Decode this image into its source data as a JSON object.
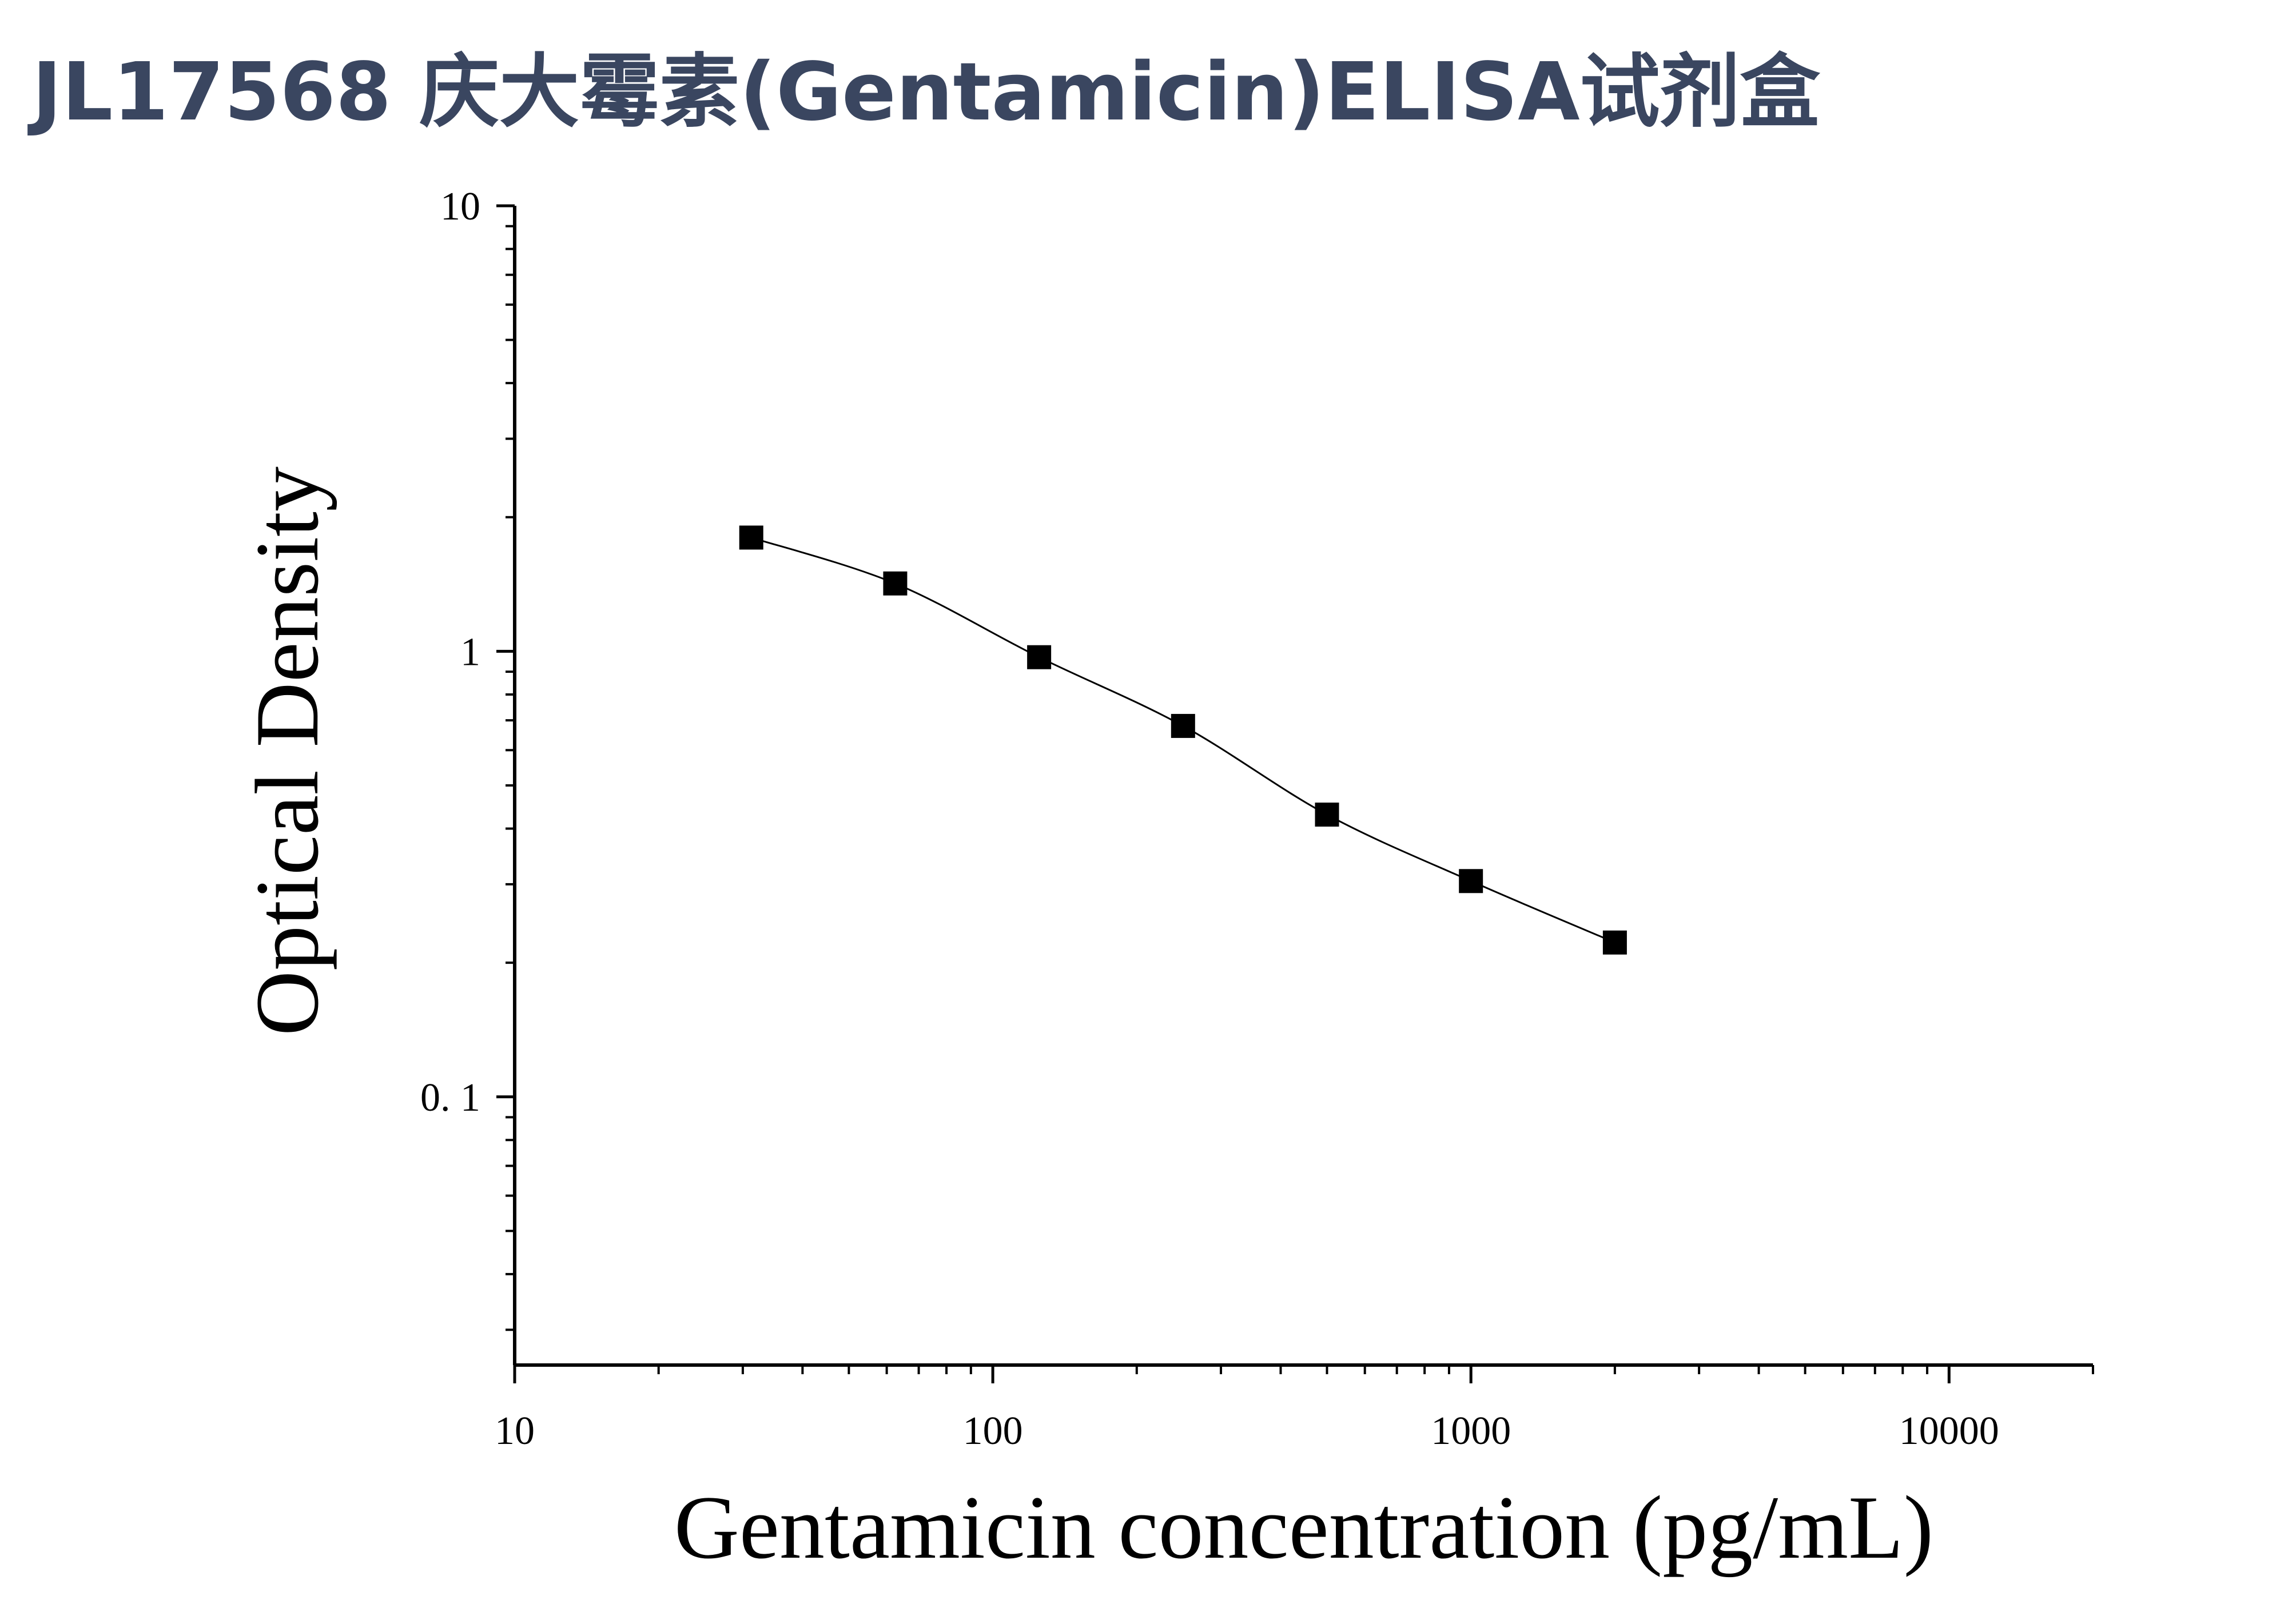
{
  "title": "JL17568 庆大霉素(Gentamicin)ELISA试剂盒",
  "chart_data": {
    "type": "scatter",
    "xlabel": "Gentamicin concentration (pg/mL)",
    "ylabel": "Optical Density",
    "xscale": "log",
    "yscale": "log",
    "xlim": [
      10,
      20000
    ],
    "ylim": [
      0.025,
      10
    ],
    "xticks": [
      {
        "value": 10,
        "label": "10"
      },
      {
        "value": 100,
        "label": "100"
      },
      {
        "value": 1000,
        "label": "1000"
      },
      {
        "value": 10000,
        "label": "10000"
      }
    ],
    "yticks": [
      {
        "value": 0.1,
        "label": "0. 1"
      },
      {
        "value": 1,
        "label": "1"
      },
      {
        "value": 10,
        "label": "10"
      }
    ],
    "grid": false,
    "marker": "square",
    "fit_line": "smooth curve through points",
    "colors": {
      "marker": "#000000",
      "line": "#000000",
      "title": "#3a4660"
    },
    "series": [
      {
        "x": [
          31.25,
          62.5,
          125,
          250,
          500,
          1000,
          2000
        ],
        "y": [
          1.8,
          1.42,
          0.97,
          0.68,
          0.43,
          0.305,
          0.222
        ]
      }
    ]
  }
}
